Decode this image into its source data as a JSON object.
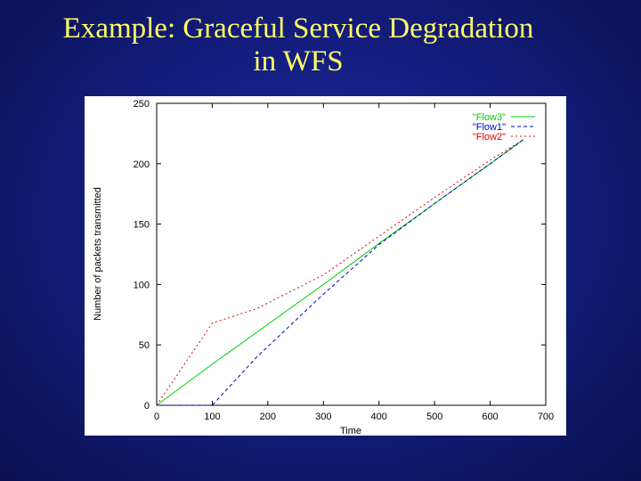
{
  "slide": {
    "title_line1": "Example: Graceful Service Degradation",
    "title_line2": "in WFS"
  },
  "chart_data": {
    "type": "line",
    "title": "",
    "xlabel": "Time",
    "ylabel": "Number of packets transmitted",
    "xlim": [
      0,
      700
    ],
    "ylim": [
      0,
      250
    ],
    "xticks": [
      0,
      100,
      200,
      300,
      400,
      500,
      600,
      700
    ],
    "yticks": [
      0,
      50,
      100,
      150,
      200,
      250
    ],
    "grid": false,
    "legend_position": "top-right",
    "series": [
      {
        "name": "\"Flow3\"",
        "color": "#00cc00",
        "style": "solid",
        "points": [
          [
            0,
            0
          ],
          [
            100,
            34
          ],
          [
            200,
            67
          ],
          [
            300,
            100
          ],
          [
            400,
            134
          ],
          [
            500,
            167
          ],
          [
            600,
            200
          ],
          [
            660,
            220
          ]
        ]
      },
      {
        "name": "\"Flow1\"",
        "color": "#0000cc",
        "style": "dashed",
        "points": [
          [
            0,
            0
          ],
          [
            100,
            0
          ],
          [
            180,
            40
          ],
          [
            300,
            92
          ],
          [
            400,
            133
          ],
          [
            500,
            167
          ],
          [
            600,
            200
          ],
          [
            660,
            220
          ]
        ]
      },
      {
        "name": "\"Flow2\"",
        "color": "#dd0000",
        "style": "dotted",
        "points": [
          [
            0,
            0
          ],
          [
            100,
            68
          ],
          [
            180,
            80
          ],
          [
            300,
            108
          ],
          [
            400,
            140
          ],
          [
            500,
            172
          ],
          [
            600,
            203
          ],
          [
            660,
            220
          ]
        ]
      }
    ]
  }
}
